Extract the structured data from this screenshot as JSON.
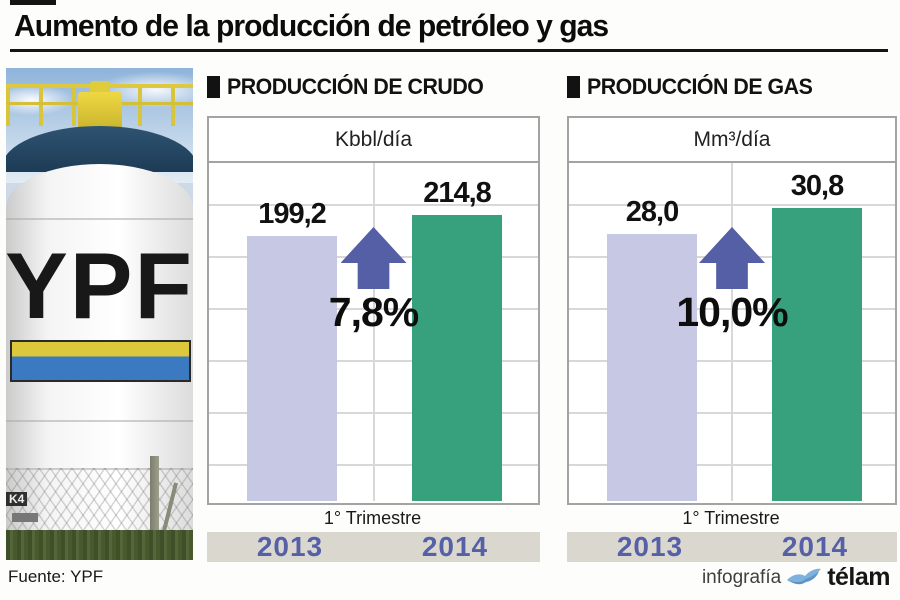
{
  "title": "Aumento de la producción de petróleo y gas",
  "photo": {
    "tank_text": "YPF",
    "sign_text": "K4"
  },
  "chart_data": [
    {
      "type": "bar",
      "section_title": "PRODUCCIÓN DE CRUDO",
      "unit": "Kbbl/día",
      "categories": [
        "2013",
        "2014"
      ],
      "values": [
        199.2,
        214.8
      ],
      "value_labels": [
        "199,2",
        "214,8"
      ],
      "change_label": "7,8%",
      "period_label": "1° Trimestre",
      "ylim": [
        0,
        254
      ],
      "bar_colors": [
        "#c7c8e3",
        "#37a17d"
      ],
      "grid": true,
      "legend_position": "none"
    },
    {
      "type": "bar",
      "section_title": "PRODUCCIÓN DE GAS",
      "unit": "Mm³/día",
      "categories": [
        "2013",
        "2014"
      ],
      "values": [
        28.0,
        30.8
      ],
      "value_labels": [
        "28,0",
        "30,8"
      ],
      "change_label": "10,0%",
      "period_label": "1° Trimestre",
      "ylim": [
        0,
        35.5
      ],
      "bar_colors": [
        "#c7c8e3",
        "#37a17d"
      ],
      "grid": true,
      "legend_position": "none"
    }
  ],
  "footer": {
    "source": "Fuente: YPF",
    "credit": "infografía",
    "brand": "télam"
  },
  "colors": {
    "bar_2013": "#c7c8e3",
    "bar_2014": "#37a17d",
    "arrow": "#555fa5",
    "year_text": "#5560a6",
    "year_band": "#dad7cf",
    "box_border": "#a3a3a3",
    "grid": "#d8d8d8"
  }
}
